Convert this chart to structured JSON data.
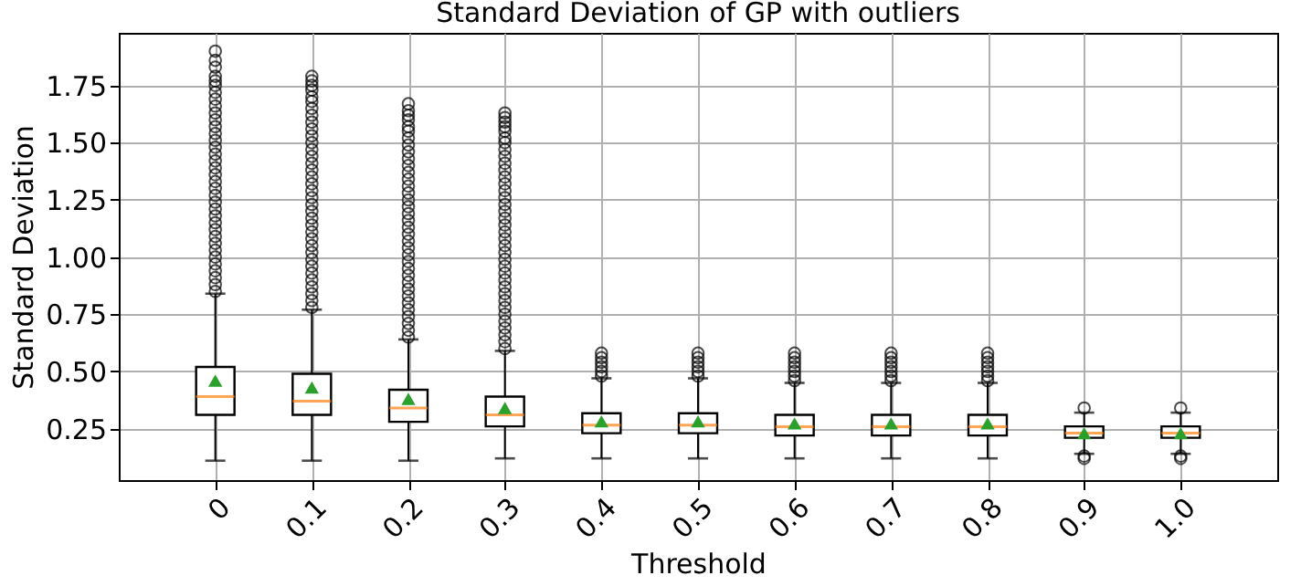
{
  "chart_data": {
    "type": "box",
    "title": "Standard Deviation  of  GP with outliers",
    "xlabel": "Threshold",
    "ylabel": "Standard Deviation",
    "categories": [
      "0",
      "0.1",
      "0.2",
      "0.3",
      "0.4",
      "0.5",
      "0.6",
      "0.7",
      "0.8",
      "0.9",
      "1.0"
    ],
    "ylim": [
      0.025,
      1.98
    ],
    "yticks": [
      0.25,
      {
        "value": 0.5,
        "label": "0.50"
      },
      0.75,
      {
        "value": 1.0,
        "label": "1.00"
      },
      1.25,
      {
        "value": 1.5,
        "label": "1.50"
      },
      1.75
    ],
    "grid": true,
    "marker": "triangle",
    "boxes": [
      {
        "low": 0.11,
        "q1": 0.31,
        "median": 0.39,
        "q3": 0.52,
        "high": 0.84,
        "mean": 0.46,
        "outliers": [
          0.85,
          0.88,
          0.91,
          0.94,
          0.97,
          1.0,
          1.03,
          1.06,
          1.09,
          1.12,
          1.15,
          1.18,
          1.21,
          1.24,
          1.27,
          1.3,
          1.33,
          1.36,
          1.39,
          1.42,
          1.45,
          1.48,
          1.51,
          1.54,
          1.57,
          1.6,
          1.63,
          1.66,
          1.69,
          1.72,
          1.75,
          1.77,
          1.79,
          1.83,
          1.86,
          1.9
        ]
      },
      {
        "low": 0.11,
        "q1": 0.31,
        "median": 0.37,
        "q3": 0.49,
        "high": 0.77,
        "mean": 0.43,
        "outliers": [
          0.78,
          0.81,
          0.84,
          0.87,
          0.9,
          0.93,
          0.96,
          0.99,
          1.02,
          1.05,
          1.08,
          1.11,
          1.14,
          1.17,
          1.2,
          1.23,
          1.26,
          1.29,
          1.32,
          1.35,
          1.38,
          1.41,
          1.44,
          1.47,
          1.5,
          1.53,
          1.56,
          1.59,
          1.62,
          1.65,
          1.68,
          1.7,
          1.73,
          1.75,
          1.77,
          1.79
        ]
      },
      {
        "low": 0.11,
        "q1": 0.28,
        "median": 0.34,
        "q3": 0.42,
        "high": 0.64,
        "mean": 0.38,
        "outliers": [
          0.65,
          0.68,
          0.71,
          0.74,
          0.77,
          0.8,
          0.83,
          0.86,
          0.89,
          0.92,
          0.95,
          0.98,
          1.01,
          1.04,
          1.07,
          1.1,
          1.13,
          1.16,
          1.19,
          1.22,
          1.25,
          1.28,
          1.31,
          1.34,
          1.37,
          1.4,
          1.43,
          1.46,
          1.49,
          1.52,
          1.55,
          1.57,
          1.6,
          1.62,
          1.64,
          1.67
        ]
      },
      {
        "low": 0.12,
        "q1": 0.26,
        "median": 0.31,
        "q3": 0.39,
        "high": 0.59,
        "mean": 0.34,
        "outliers": [
          0.6,
          0.63,
          0.66,
          0.69,
          0.72,
          0.75,
          0.78,
          0.81,
          0.84,
          0.87,
          0.9,
          0.93,
          0.96,
          0.99,
          1.02,
          1.05,
          1.08,
          1.11,
          1.14,
          1.17,
          1.2,
          1.23,
          1.26,
          1.29,
          1.32,
          1.35,
          1.38,
          1.41,
          1.44,
          1.47,
          1.5,
          1.52,
          1.55,
          1.57,
          1.59,
          1.61,
          1.63
        ]
      },
      {
        "low": 0.12,
        "q1": 0.23,
        "median": 0.265,
        "q3": 0.317,
        "high": 0.47,
        "mean": 0.282,
        "outliers": [
          0.48,
          0.5,
          0.52,
          0.54,
          0.56,
          0.58
        ]
      },
      {
        "low": 0.12,
        "q1": 0.23,
        "median": 0.265,
        "q3": 0.317,
        "high": 0.47,
        "mean": 0.282,
        "outliers": [
          0.48,
          0.5,
          0.52,
          0.54,
          0.56,
          0.58
        ]
      },
      {
        "low": 0.12,
        "q1": 0.22,
        "median": 0.258,
        "q3": 0.31,
        "high": 0.45,
        "mean": 0.273,
        "outliers": [
          0.46,
          0.48,
          0.5,
          0.52,
          0.54,
          0.56,
          0.58
        ]
      },
      {
        "low": 0.12,
        "q1": 0.22,
        "median": 0.258,
        "q3": 0.31,
        "high": 0.45,
        "mean": 0.273,
        "outliers": [
          0.46,
          0.48,
          0.5,
          0.52,
          0.54,
          0.56,
          0.58
        ]
      },
      {
        "low": 0.12,
        "q1": 0.22,
        "median": 0.258,
        "q3": 0.31,
        "high": 0.45,
        "mean": 0.273,
        "outliers": [
          0.46,
          0.48,
          0.5,
          0.52,
          0.54,
          0.56,
          0.58
        ]
      },
      {
        "low": 0.14,
        "q1": 0.21,
        "median": 0.23,
        "q3": 0.26,
        "high": 0.32,
        "mean": 0.23,
        "outliers": [
          0.12,
          0.13,
          0.34
        ]
      },
      {
        "low": 0.14,
        "q1": 0.21,
        "median": 0.23,
        "q3": 0.26,
        "high": 0.32,
        "mean": 0.23,
        "outliers": [
          0.12,
          0.13,
          0.34
        ]
      }
    ]
  }
}
